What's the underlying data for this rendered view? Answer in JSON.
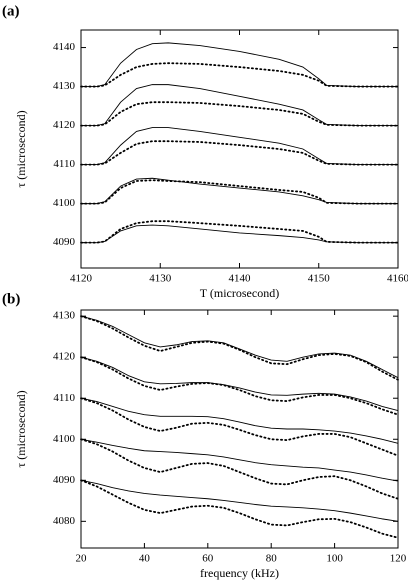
{
  "chart_data": [
    {
      "type": "line",
      "panel_label": "(a)",
      "x_label": "T (microsecond)",
      "y_label": "τ (microsecond)",
      "x": [
        4120,
        4122,
        4123,
        4125,
        4127,
        4129,
        4131,
        4135,
        4140,
        4145,
        4148,
        4150,
        4151,
        4155,
        4160
      ],
      "xlim": [
        4120,
        4160
      ],
      "xticks": [
        4120,
        4130,
        4140,
        4150,
        4160
      ],
      "ylim": [
        4083.5,
        4144.5
      ],
      "yticks": [
        4090,
        4100,
        4110,
        4120,
        4130,
        4140
      ],
      "series": [
        {
          "style": "solid",
          "color": "#000000",
          "values": [
            4130,
            4130,
            4130.5,
            4136,
            4139.5,
            4141,
            4141.2,
            4140.5,
            4139,
            4137,
            4135,
            4132,
            4130.3,
            4130,
            4130
          ]
        },
        {
          "style": "dotted",
          "color": "#000000",
          "values": [
            4130,
            4130,
            4130.3,
            4133,
            4135,
            4135.8,
            4136,
            4135.8,
            4135,
            4134,
            4133,
            4131.5,
            4130.2,
            4130,
            4130
          ]
        },
        {
          "style": "solid",
          "color": "#000000",
          "values": [
            4120,
            4120,
            4120.5,
            4126,
            4129.5,
            4130.5,
            4130.5,
            4129.5,
            4127.5,
            4125.5,
            4124,
            4121.5,
            4120.3,
            4120,
            4120
          ]
        },
        {
          "style": "dotted",
          "color": "#000000",
          "values": [
            4120,
            4120,
            4120.3,
            4123.5,
            4125.5,
            4126,
            4126,
            4125.8,
            4125,
            4124,
            4123,
            4121,
            4120.2,
            4120,
            4120
          ]
        },
        {
          "style": "solid",
          "color": "#000000",
          "values": [
            4110,
            4110,
            4110.5,
            4115,
            4118.5,
            4119.5,
            4119.5,
            4118.5,
            4117,
            4115.5,
            4114,
            4111.5,
            4110.3,
            4110,
            4110
          ]
        },
        {
          "style": "dotted",
          "color": "#000000",
          "values": [
            4110,
            4110,
            4110.3,
            4113,
            4115.3,
            4116,
            4116,
            4115.8,
            4115,
            4114,
            4113,
            4111,
            4110.2,
            4110,
            4110
          ]
        },
        {
          "style": "solid",
          "color": "#000000",
          "values": [
            4100,
            4100,
            4100.5,
            4104.5,
            4106.3,
            4106.5,
            4106,
            4105,
            4104,
            4103,
            4102,
            4101,
            4100.3,
            4100,
            4100
          ]
        },
        {
          "style": "dotted",
          "color": "#000000",
          "values": [
            4100,
            4100,
            4100.3,
            4104,
            4105.8,
            4106,
            4105.8,
            4105.5,
            4104.5,
            4103.5,
            4103,
            4101.5,
            4100.2,
            4100,
            4100
          ]
        },
        {
          "style": "solid",
          "color": "#000000",
          "values": [
            4090,
            4090,
            4090.3,
            4093,
            4094.3,
            4094.5,
            4094.3,
            4093.5,
            4092.5,
            4091.8,
            4091.3,
            4090.7,
            4090.2,
            4090,
            4090
          ]
        },
        {
          "style": "dotted",
          "color": "#000000",
          "values": [
            4090,
            4090,
            4090.3,
            4093.5,
            4095,
            4095.5,
            4095.5,
            4095,
            4094.3,
            4093.5,
            4093,
            4091.5,
            4090.2,
            4090,
            4090
          ]
        }
      ]
    },
    {
      "type": "line",
      "panel_label": "(b)",
      "x_label": "frequency (kHz)",
      "y_label": "τ (microsecond)",
      "x": [
        20,
        25,
        30,
        35,
        40,
        45,
        50,
        55,
        60,
        65,
        70,
        75,
        80,
        85,
        90,
        95,
        100,
        105,
        110,
        115,
        120
      ],
      "xlim": [
        20,
        120
      ],
      "xticks": [
        20,
        40,
        60,
        80,
        100,
        120
      ],
      "ylim": [
        4073.5,
        4131.5
      ],
      "yticks": [
        4080,
        4090,
        4100,
        4110,
        4120,
        4130
      ],
      "series": [
        {
          "style": "solid",
          "color": "#000000",
          "values": [
            4130,
            4129,
            4127.5,
            4125.5,
            4123.5,
            4122.5,
            4123,
            4123.8,
            4124,
            4123.5,
            4122,
            4120.5,
            4119.3,
            4119,
            4120,
            4120.8,
            4121,
            4120.5,
            4119,
            4117,
            4115
          ]
        },
        {
          "style": "dotted",
          "color": "#000000",
          "values": [
            4130,
            4128.8,
            4127,
            4124.8,
            4122.8,
            4121.5,
            4122.5,
            4123.5,
            4123.8,
            4123.3,
            4121.8,
            4120,
            4118.5,
            4118.3,
            4119.5,
            4120.5,
            4120.8,
            4120.3,
            4118.8,
            4116.5,
            4114.5
          ]
        },
        {
          "style": "solid",
          "color": "#000000",
          "values": [
            4120,
            4119,
            4117.5,
            4115.5,
            4114,
            4113.5,
            4113.6,
            4113.8,
            4113.8,
            4113.3,
            4112.5,
            4111.5,
            4110.8,
            4110.7,
            4111,
            4111.2,
            4111,
            4110.3,
            4109.3,
            4108,
            4107
          ]
        },
        {
          "style": "dotted",
          "color": "#000000",
          "values": [
            4120,
            4118.8,
            4117,
            4114.8,
            4113,
            4112,
            4112.8,
            4113.5,
            4113.7,
            4113.2,
            4112,
            4110.5,
            4109.5,
            4109.3,
            4110.2,
            4110.8,
            4110.8,
            4110,
            4108.8,
            4107.3,
            4106
          ]
        },
        {
          "style": "solid",
          "color": "#000000",
          "values": [
            4110,
            4109.2,
            4108,
            4106.8,
            4106,
            4105.6,
            4105.6,
            4105.6,
            4105.5,
            4105,
            4104.2,
            4103.3,
            4102.7,
            4102.5,
            4102.5,
            4102.3,
            4102,
            4101.5,
            4100.8,
            4100,
            4099
          ]
        },
        {
          "style": "dotted",
          "color": "#000000",
          "values": [
            4110,
            4108.8,
            4107,
            4104.8,
            4103,
            4102,
            4102.8,
            4103.8,
            4104,
            4103.5,
            4102.3,
            4101,
            4100,
            4099.8,
            4100.7,
            4101.3,
            4101.3,
            4100.5,
            4099,
            4097.5,
            4096
          ]
        },
        {
          "style": "solid",
          "color": "#000000",
          "values": [
            4100,
            4099.3,
            4098.5,
            4097.8,
            4097.2,
            4097,
            4096.8,
            4096.5,
            4096.2,
            4095.7,
            4095,
            4094.3,
            4093.8,
            4093.5,
            4093.2,
            4093,
            4092.5,
            4092,
            4091.3,
            4090.5,
            4089.8
          ]
        },
        {
          "style": "dotted",
          "color": "#000000",
          "values": [
            4100,
            4098.8,
            4097,
            4094.8,
            4093,
            4092,
            4093,
            4094,
            4094.2,
            4093.5,
            4092,
            4090.5,
            4089.2,
            4089,
            4090,
            4090.8,
            4091,
            4090,
            4088.5,
            4086.8,
            4085.5
          ]
        },
        {
          "style": "solid",
          "color": "#000000",
          "values": [
            4090,
            4089.2,
            4088.2,
            4087.4,
            4086.8,
            4086.4,
            4086.1,
            4085.8,
            4085.5,
            4085.1,
            4084.6,
            4084.1,
            4083.7,
            4083.5,
            4083.3,
            4083,
            4082.6,
            4082,
            4081.3,
            4080.6,
            4080
          ]
        },
        {
          "style": "dotted",
          "color": "#000000",
          "values": [
            4090,
            4088.5,
            4086.5,
            4084.5,
            4082.8,
            4082,
            4082.8,
            4083.6,
            4083.8,
            4083.3,
            4082,
            4080.5,
            4079.2,
            4079,
            4079.8,
            4080.5,
            4080.6,
            4079.8,
            4078.5,
            4077,
            4076
          ]
        }
      ]
    }
  ]
}
